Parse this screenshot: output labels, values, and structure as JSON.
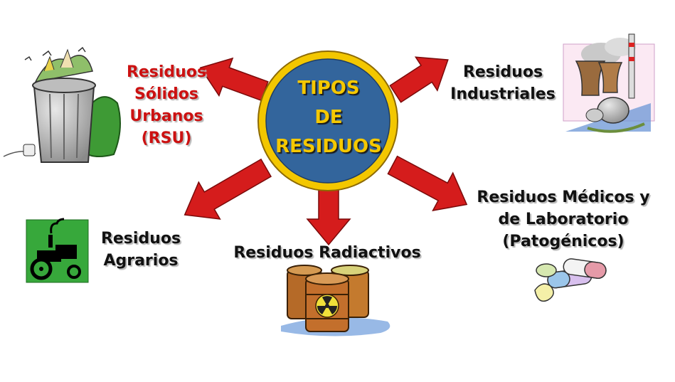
{
  "title": [
    "TIPOS",
    "DE",
    "RESIDUOS"
  ],
  "categories": [
    {
      "id": "rsu",
      "lines": [
        "Residuos",
        "Sólidos",
        "Urbanos",
        "(RSU)"
      ],
      "icon": "trash-can-icon"
    },
    {
      "id": "industriales",
      "lines": [
        "Residuos",
        "Industriales"
      ],
      "icon": "factory-icon"
    },
    {
      "id": "agrarios",
      "lines": [
        "Residuos",
        "Agrarios"
      ],
      "icon": "tractor-icon"
    },
    {
      "id": "radiactivos",
      "lines": [
        "Residuos Radiactivos"
      ],
      "icon": "radioactive-barrels-icon"
    },
    {
      "id": "medicos",
      "lines": [
        "Residuos Médicos y",
        "de Laboratorio",
        "(Patogénicos)"
      ],
      "icon": "pills-icon"
    }
  ],
  "colors": {
    "arrow": "#d51c1c",
    "circle_fill": "#33659c",
    "circle_ring": "#f3c700",
    "title_text": "#f5c800",
    "rsu_text": "#cc1111",
    "label_text": "#111111"
  }
}
